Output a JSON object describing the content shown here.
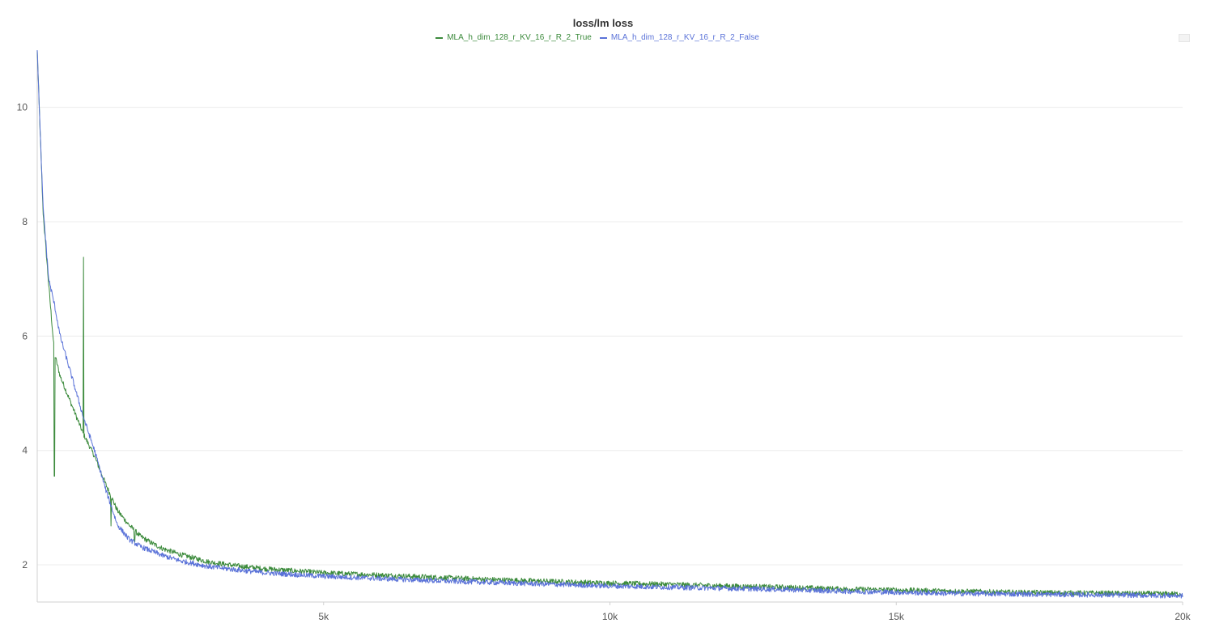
{
  "chart_data": {
    "type": "line",
    "title": "loss/lm loss",
    "xlabel": "",
    "ylabel": "",
    "xlim": [
      0,
      20000
    ],
    "ylim": [
      1.35,
      11.0
    ],
    "x_ticks": [
      5000,
      10000,
      15000,
      20000
    ],
    "x_tick_labels": [
      "5k",
      "10k",
      "15k",
      "20k"
    ],
    "y_ticks": [
      2,
      4,
      6,
      8,
      10
    ],
    "y_tick_labels": [
      "2",
      "4",
      "6",
      "8",
      "10"
    ],
    "grid": true,
    "legend_position": "top-center",
    "series": [
      {
        "name": "MLA_h_dim_128_r_KV_16_r_R_2_True",
        "color": "#3b8a3b",
        "points": [
          [
            0,
            11.0
          ],
          [
            50,
            9.6
          ],
          [
            100,
            8.2
          ],
          [
            200,
            6.9
          ],
          [
            300,
            5.7
          ],
          [
            400,
            5.3
          ],
          [
            600,
            4.8
          ],
          [
            800,
            4.3
          ],
          [
            1000,
            3.9
          ],
          [
            1200,
            3.4
          ],
          [
            1400,
            2.95
          ],
          [
            1600,
            2.7
          ],
          [
            1800,
            2.5
          ],
          [
            2000,
            2.38
          ],
          [
            2200,
            2.28
          ],
          [
            2500,
            2.18
          ],
          [
            3000,
            2.05
          ],
          [
            3500,
            1.98
          ],
          [
            4000,
            1.93
          ],
          [
            5000,
            1.86
          ],
          [
            6000,
            1.82
          ],
          [
            7000,
            1.78
          ],
          [
            8000,
            1.74
          ],
          [
            9000,
            1.71
          ],
          [
            10000,
            1.68
          ],
          [
            11000,
            1.66
          ],
          [
            12000,
            1.63
          ],
          [
            13000,
            1.61
          ],
          [
            14000,
            1.58
          ],
          [
            15000,
            1.56
          ],
          [
            16000,
            1.54
          ],
          [
            17000,
            1.52
          ],
          [
            18000,
            1.51
          ],
          [
            19000,
            1.5
          ],
          [
            20000,
            1.49
          ]
        ],
        "spikes": [
          [
            805,
            7.38
          ],
          [
            1285,
            2.68
          ],
          [
            1700,
            2.4
          ],
          [
            300,
            3.55
          ]
        ]
      },
      {
        "name": "MLA_h_dim_128_r_KV_16_r_R_2_False",
        "color": "#5a72d8",
        "points": [
          [
            0,
            11.0
          ],
          [
            50,
            9.6
          ],
          [
            100,
            8.3
          ],
          [
            200,
            7.0
          ],
          [
            300,
            6.55
          ],
          [
            400,
            6.0
          ],
          [
            600,
            5.3
          ],
          [
            800,
            4.6
          ],
          [
            1000,
            4.0
          ],
          [
            1200,
            3.3
          ],
          [
            1400,
            2.7
          ],
          [
            1600,
            2.45
          ],
          [
            1800,
            2.32
          ],
          [
            2000,
            2.24
          ],
          [
            2200,
            2.16
          ],
          [
            2500,
            2.07
          ],
          [
            3000,
            1.97
          ],
          [
            3500,
            1.91
          ],
          [
            4000,
            1.86
          ],
          [
            5000,
            1.8
          ],
          [
            6000,
            1.76
          ],
          [
            7000,
            1.72
          ],
          [
            8000,
            1.69
          ],
          [
            9000,
            1.66
          ],
          [
            10000,
            1.63
          ],
          [
            11000,
            1.61
          ],
          [
            12000,
            1.59
          ],
          [
            13000,
            1.57
          ],
          [
            14000,
            1.54
          ],
          [
            15000,
            1.52
          ],
          [
            16000,
            1.5
          ],
          [
            17000,
            1.49
          ],
          [
            18000,
            1.48
          ],
          [
            19000,
            1.47
          ],
          [
            20000,
            1.46
          ]
        ],
        "spikes": []
      }
    ]
  }
}
